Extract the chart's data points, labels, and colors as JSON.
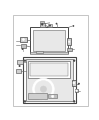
{
  "bg_color": "#ffffff",
  "border_color": "#bbbbbb",
  "lc": "#666666",
  "lc_dark": "#444444",
  "fig_bg": "#ffffff",
  "part_fill": "#e8e8e8",
  "part_fill2": "#d0d0d0",
  "part_fill3": "#c0c0c0"
}
